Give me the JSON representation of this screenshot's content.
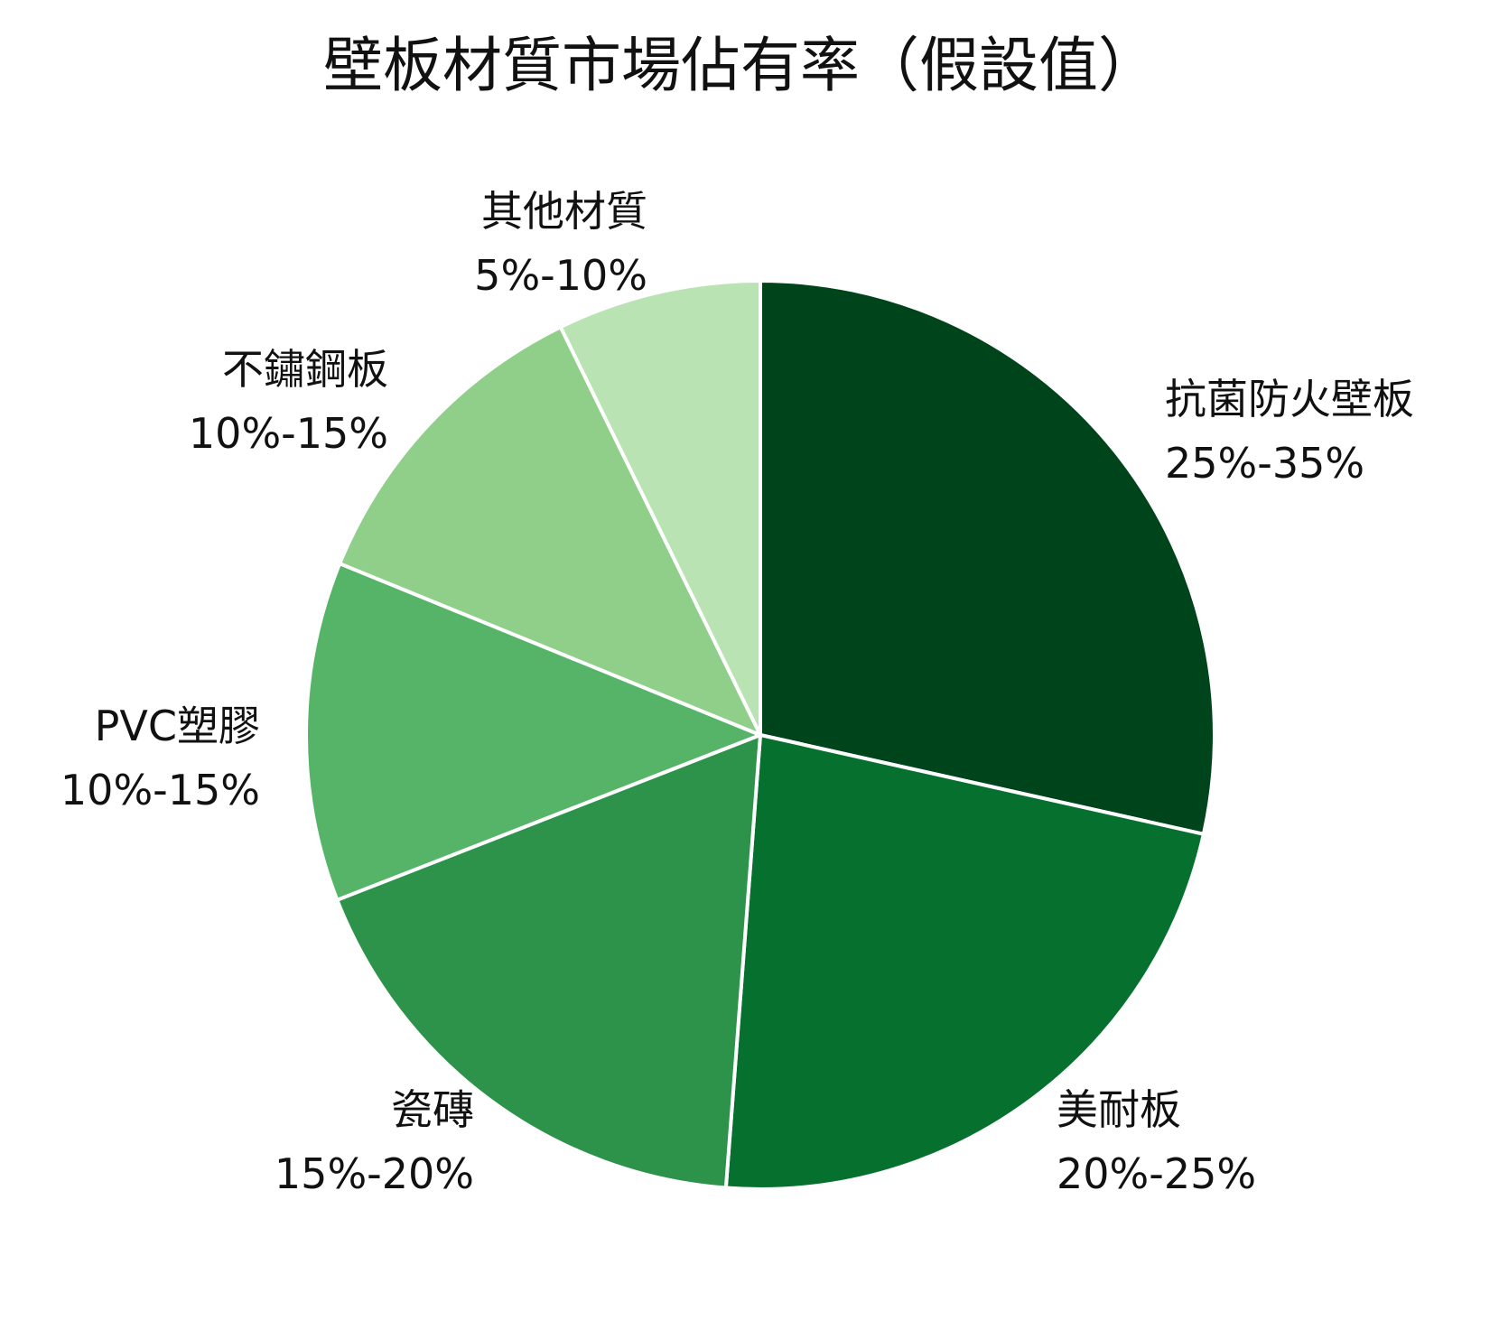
{
  "chart_data": {
    "type": "pie",
    "title": "壁板材質市場佔有率（假設值）",
    "start_angle_deg": 90,
    "direction": "clockwise",
    "slices": [
      {
        "name": "抗菌防火壁板",
        "range_label": "25%-35%",
        "value": 29.5,
        "color": "#00441b"
      },
      {
        "name": "美耐板",
        "range_label": "20%-25%",
        "value": 23.5,
        "color": "#06712f"
      },
      {
        "name": "瓷磚",
        "range_label": "15%-20%",
        "value": 18.5,
        "color": "#2d924a"
      },
      {
        "name": "PVC塑膠",
        "range_label": "10%-15%",
        "value": 12.5,
        "color": "#55b467"
      },
      {
        "name": "不鏽鋼板",
        "range_label": "10%-15%",
        "value": 12.0,
        "color": "#8fcf89"
      },
      {
        "name": "其他材質",
        "range_label": "5%-10%",
        "value": 7.5,
        "color": "#b9e3b2"
      }
    ]
  }
}
